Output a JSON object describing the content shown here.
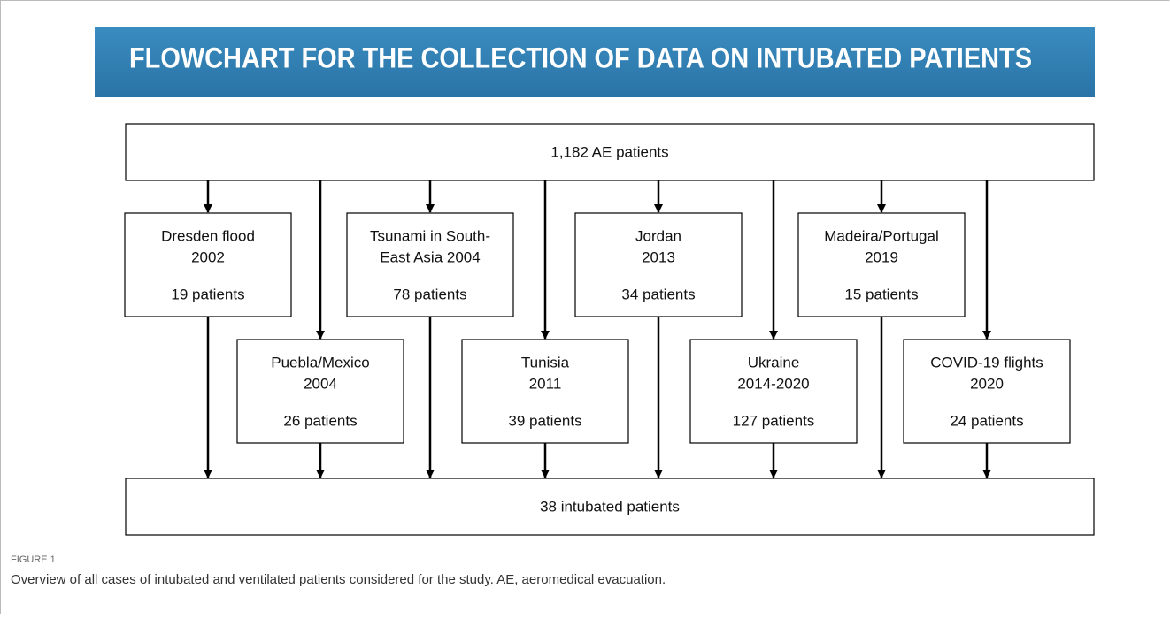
{
  "title": "FLOWCHART FOR THE COLLECTION OF DATA ON INTUBATED PATIENTS",
  "source": {
    "label": "1,182 AE patients"
  },
  "nodes": [
    {
      "lines": [
        "Dresden flood",
        "2002"
      ],
      "count": "19 patients"
    },
    {
      "lines": [
        "Puebla/Mexico",
        "2004"
      ],
      "count": "26 patients"
    },
    {
      "lines": [
        "Tsunami  in South-",
        "East Asia 2004"
      ],
      "count": "78 patients"
    },
    {
      "lines": [
        "Tunisia",
        "2011"
      ],
      "count": "39 patients"
    },
    {
      "lines": [
        "Jordan",
        "2013"
      ],
      "count": "34 patients"
    },
    {
      "lines": [
        "Ukraine",
        "2014-2020"
      ],
      "count": "127 patients"
    },
    {
      "lines": [
        "Madeira/Portugal",
        "2019"
      ],
      "count": "15 patients"
    },
    {
      "lines": [
        "COVID-19 flights",
        "2020"
      ],
      "count": "24 patients"
    }
  ],
  "target": {
    "label": "38 intubated patients"
  },
  "caption": {
    "label": "FIGURE 1",
    "text": "Overview of all cases of intubated and ventilated patients considered for the study. AE, aeromedical evacuation."
  }
}
